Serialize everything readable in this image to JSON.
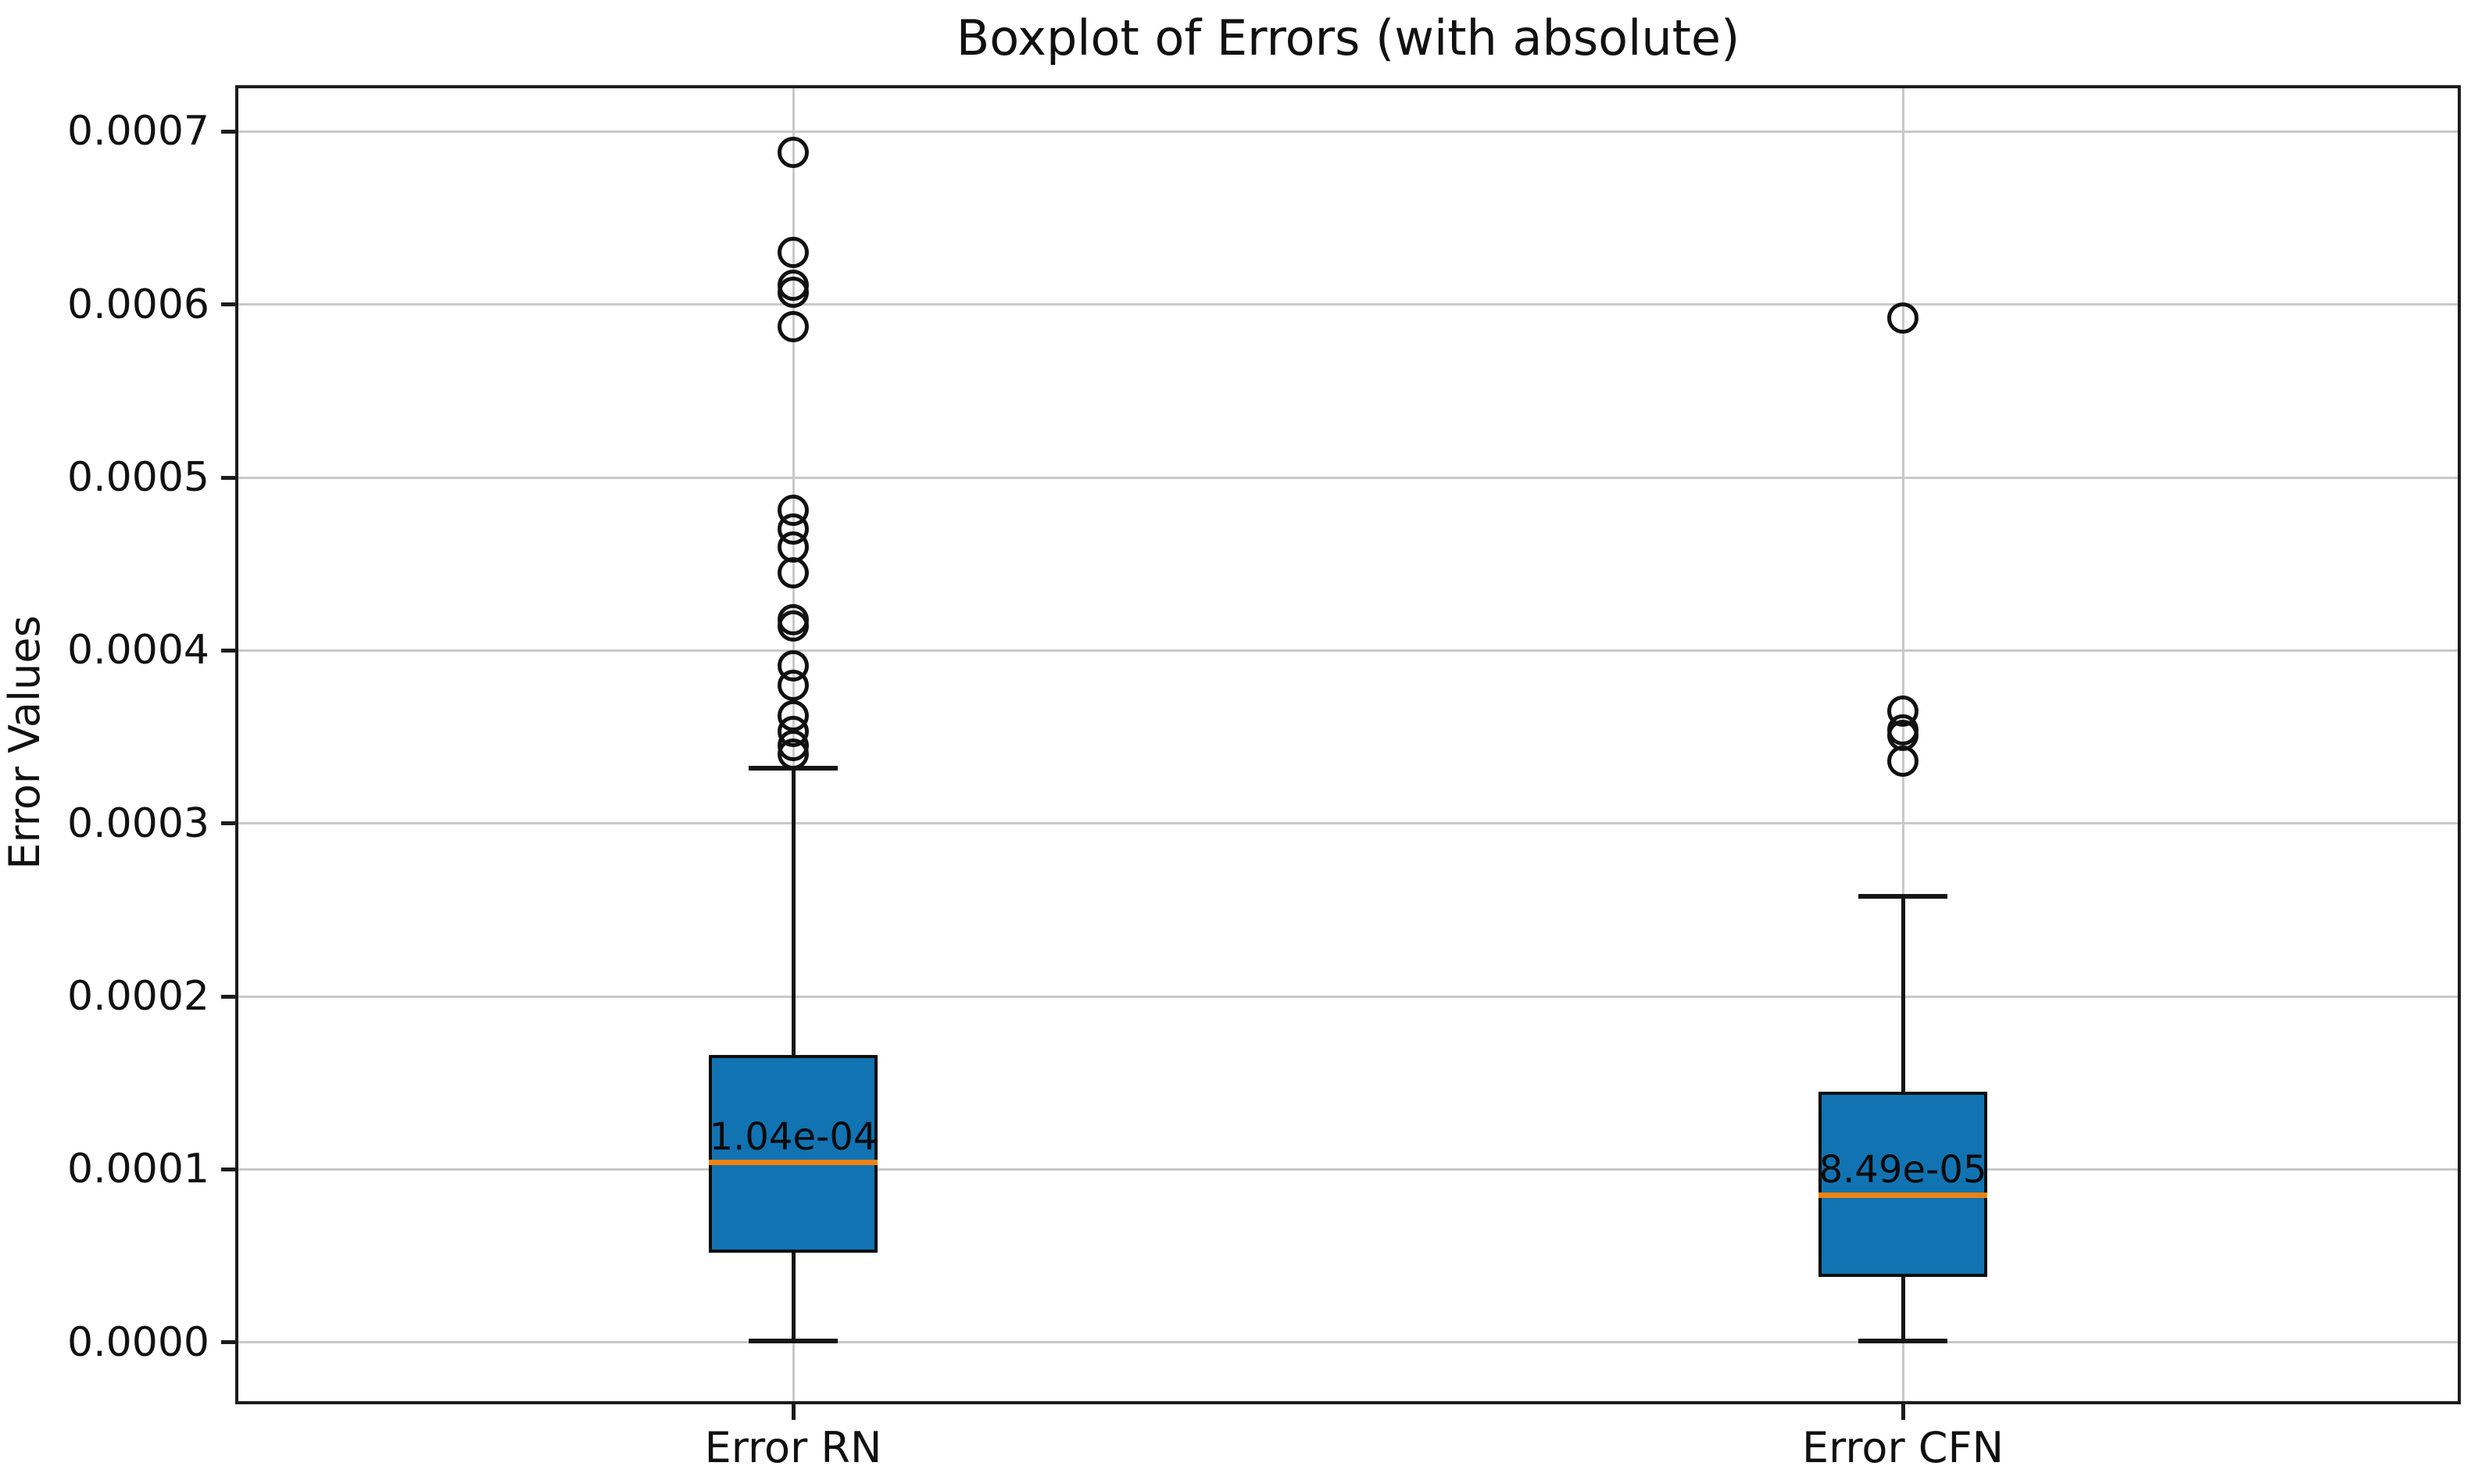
{
  "figure": {
    "title": "Boxplot of Errors (with absolute)",
    "ylabel": "Error Values"
  },
  "chart_data": {
    "type": "boxplot",
    "title": "Boxplot of Errors (with absolute)",
    "xlabel": "",
    "ylabel": "Error Values",
    "grid": true,
    "categories": [
      "Error RN",
      "Error CFN"
    ],
    "ylim": [
      -3.4e-05,
      0.000725
    ],
    "yticks": [
      0.0,
      0.0001,
      0.0002,
      0.0003,
      0.0004,
      0.0005,
      0.0006,
      0.0007
    ],
    "ytick_labels": [
      "0.0000",
      "0.0001",
      "0.0002",
      "0.0003",
      "0.0004",
      "0.0005",
      "0.0006",
      "0.0007"
    ],
    "colors": {
      "box_fill": "#1273b2",
      "box_edge": "#0d0d0d",
      "median": "#ef820e",
      "whisker": "#151515",
      "grid": "#c9c9c9",
      "spine": "#1c1c1c",
      "flier_edge": "#111111"
    },
    "series": [
      {
        "name": "Error RN",
        "position": 0.25,
        "whisker_low": 1e-06,
        "q1": 5.2e-05,
        "median": 0.000104,
        "q3": 0.000166,
        "whisker_high": 0.000332,
        "median_label": "1.04e-04",
        "fliers": [
          0.000688,
          0.00063,
          0.000611,
          0.000607,
          0.000587,
          0.000481,
          0.00047,
          0.00046,
          0.000445,
          0.000418,
          0.000414,
          0.000391,
          0.00038,
          0.000362,
          0.000353,
          0.000345,
          0.00034
        ]
      },
      {
        "name": "Error CFN",
        "position": 0.75,
        "whisker_low": 1e-06,
        "q1": 3.8e-05,
        "median": 8.49e-05,
        "q3": 0.000145,
        "whisker_high": 0.000258,
        "median_label": "8.49e-05",
        "fliers": [
          0.000592,
          0.000365,
          0.000354,
          0.000351,
          0.000336
        ]
      }
    ]
  }
}
